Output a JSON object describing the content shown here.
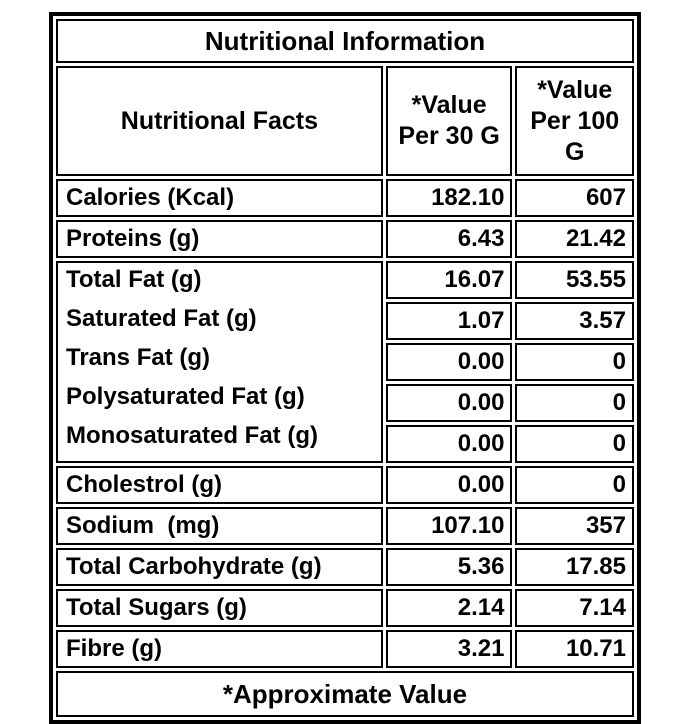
{
  "title": "Nutritional Information",
  "header": {
    "facts": "Nutritional Facts",
    "per30": "*Value\nPer 30 G",
    "per100": "*Value\nPer 100\nG"
  },
  "rows": [
    {
      "label": "Calories (Kcal)",
      "per30": "182.10",
      "per100": "607"
    },
    {
      "label": "Proteins (g)",
      "per30": "6.43",
      "per100": "21.42"
    },
    {
      "label": "Total Fat (g)",
      "per30": "16.07",
      "per100": "53.55"
    },
    {
      "label": "Saturated Fat (g)",
      "per30": "1.07",
      "per100": "3.57"
    },
    {
      "label": "Trans Fat (g)",
      "per30": "0.00",
      "per100": "0"
    },
    {
      "label": "Polysaturated Fat (g)",
      "per30": "0.00",
      "per100": "0"
    },
    {
      "label": "Monosaturated Fat (g)",
      "per30": "0.00",
      "per100": "0"
    },
    {
      "label": "Cholestrol (g)",
      "per30": "0.00",
      "per100": "0"
    },
    {
      "label": "Sodium  (mg)",
      "per30": "107.10",
      "per100": "357"
    },
    {
      "label": "Total Carbohydrate (g)",
      "per30": "5.36",
      "per100": "17.85"
    },
    {
      "label": "Total Sugars (g)",
      "per30": "2.14",
      "per100": "7.14"
    },
    {
      "label": "Fibre (g)",
      "per30": "3.21",
      "per100": "10.71"
    }
  ],
  "footer": "*Approximate Value",
  "colors": {
    "border": "#000000",
    "text": "#000000",
    "background": "#ffffff"
  }
}
